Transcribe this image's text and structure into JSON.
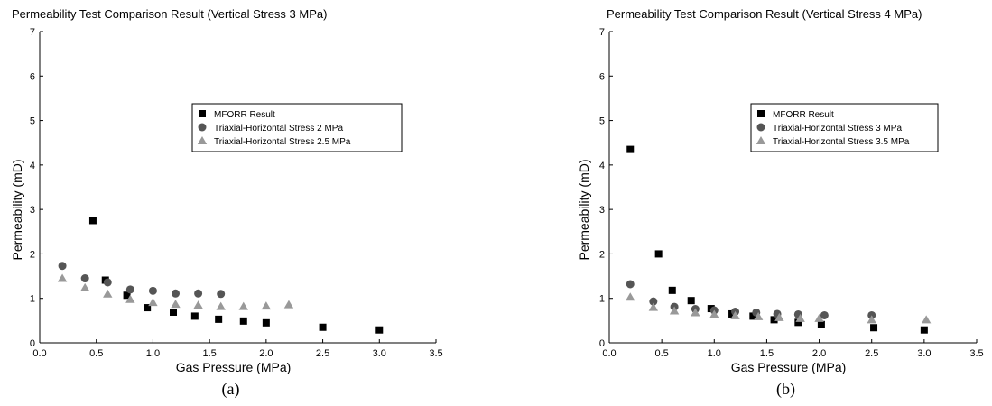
{
  "chart_data": [
    {
      "type": "scatter",
      "title": "Permeability Test Comparison Result (Vertical Stress 3 MPa)",
      "xlabel": "Gas Pressure (MPa)",
      "ylabel": "Permeability (mD)",
      "xlim": [
        0,
        3.5
      ],
      "ylim": [
        0,
        7
      ],
      "xticks": [
        "0.0",
        "0.5",
        "1.0",
        "1.5",
        "2.0",
        "2.5",
        "3.0",
        "3.5"
      ],
      "yticks": [
        "0",
        "1",
        "2",
        "3",
        "4",
        "5",
        "6",
        "7"
      ],
      "caption": "(a)",
      "grid": false,
      "legend_position": "upper-right",
      "series": [
        {
          "name": "MFORR Result",
          "marker": "square",
          "color": "#000000",
          "x": [
            0.47,
            0.58,
            0.77,
            0.95,
            1.18,
            1.37,
            1.58,
            1.8,
            2.0,
            2.5,
            3.0
          ],
          "y": [
            2.75,
            1.41,
            1.07,
            0.79,
            0.69,
            0.6,
            0.53,
            0.49,
            0.45,
            0.35,
            0.29
          ]
        },
        {
          "name": "Triaxial-Horizontal Stress 2 MPa",
          "marker": "circle",
          "color": "#555555",
          "x": [
            0.2,
            0.4,
            0.6,
            0.8,
            1.0,
            1.2,
            1.4,
            1.6
          ],
          "y": [
            1.73,
            1.45,
            1.36,
            1.2,
            1.17,
            1.11,
            1.11,
            1.1
          ]
        },
        {
          "name": "Triaxial-Horizontal Stress 2.5 MPa",
          "marker": "triangle",
          "color": "#999999",
          "x": [
            0.2,
            0.4,
            0.6,
            0.8,
            1.0,
            1.2,
            1.4,
            1.6,
            1.8,
            2.0,
            2.2
          ],
          "y": [
            1.45,
            1.24,
            1.1,
            0.98,
            0.91,
            0.87,
            0.85,
            0.82,
            0.82,
            0.83,
            0.86
          ]
        }
      ]
    },
    {
      "type": "scatter",
      "title": "Permeability Test Comparison Result (Vertical Stress 4 MPa)",
      "xlabel": "Gas Pressure (MPa)",
      "ylabel": "Permeability (mD)",
      "xlim": [
        0,
        3.5
      ],
      "ylim": [
        0,
        7
      ],
      "xticks": [
        "0.0",
        "0.5",
        "1.0",
        "1.5",
        "2.0",
        "2.5",
        "3.0",
        "3.5"
      ],
      "yticks": [
        "0",
        "1",
        "2",
        "3",
        "4",
        "5",
        "6",
        "7"
      ],
      "caption": "(b)",
      "grid": false,
      "legend_position": "upper-right",
      "series": [
        {
          "name": "MFORR Result",
          "marker": "square",
          "color": "#000000",
          "x": [
            0.2,
            0.47,
            0.6,
            0.78,
            0.97,
            1.17,
            1.37,
            1.57,
            1.8,
            2.02,
            2.52,
            3.0
          ],
          "y": [
            4.35,
            2.0,
            1.18,
            0.95,
            0.77,
            0.65,
            0.6,
            0.52,
            0.46,
            0.41,
            0.34,
            0.29
          ]
        },
        {
          "name": "Triaxial-Horizontal Stress 3 MPa",
          "marker": "circle",
          "color": "#555555",
          "x": [
            0.2,
            0.42,
            0.62,
            0.82,
            1.0,
            1.2,
            1.4,
            1.6,
            1.8,
            2.05,
            2.5
          ],
          "y": [
            1.32,
            0.93,
            0.81,
            0.76,
            0.73,
            0.7,
            0.68,
            0.65,
            0.64,
            0.62,
            0.62
          ]
        },
        {
          "name": "Triaxial-Horizontal Stress 3.5 MPa",
          "marker": "triangle",
          "color": "#999999",
          "x": [
            0.2,
            0.42,
            0.62,
            0.82,
            1.0,
            1.2,
            1.42,
            1.62,
            1.82,
            2.0,
            2.5,
            3.02
          ],
          "y": [
            1.03,
            0.8,
            0.72,
            0.68,
            0.64,
            0.61,
            0.59,
            0.57,
            0.55,
            0.55,
            0.52,
            0.52
          ]
        }
      ]
    }
  ]
}
